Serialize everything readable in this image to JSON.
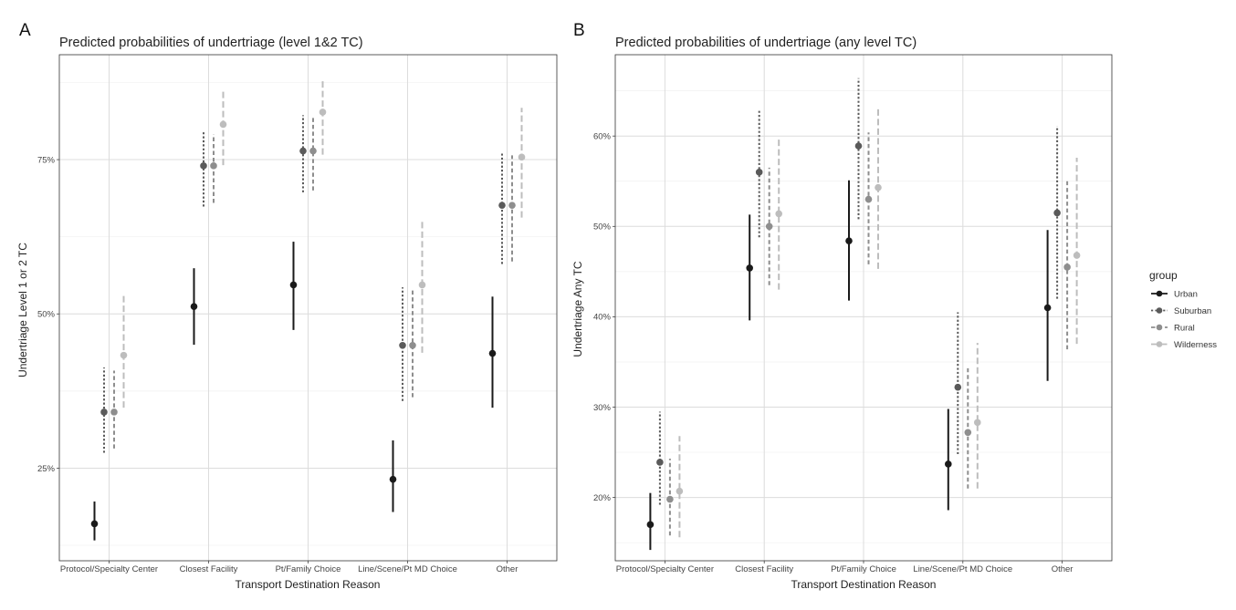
{
  "legend": {
    "title": "group",
    "placement": "right",
    "items": [
      "Urban",
      "Suburban",
      "Rural",
      "Wilderness"
    ]
  },
  "colors": {
    "Urban": "#1a1a1a",
    "Suburban": "#5a5a5a",
    "Rural": "#8e8e8e",
    "Wilderness": "#bdbdbd"
  },
  "line_styles": {
    "Urban": "solid",
    "Suburban": "dotted",
    "Rural": "dashed",
    "Wilderness": "long-dashed"
  },
  "chart_data": [
    {
      "panel": "A",
      "type": "scatter",
      "title": "Predicted probabilities of undertriage (level 1&2 TC)",
      "xlabel": "Transport Destination Reason",
      "ylabel": "Undertriage Level 1 or 2 TC",
      "categories": [
        "Protocol/Specialty Center",
        "Closest Facility",
        "Pt/Family Choice",
        "Line/Scene/Pt MD Choice",
        "Other"
      ],
      "ylim": [
        0.1,
        0.92
      ],
      "yticks": [
        0.25,
        0.5,
        0.75
      ],
      "ytick_labels": [
        "25%",
        "50%",
        "75%"
      ],
      "grid": true,
      "series": [
        {
          "name": "Urban",
          "values": [
            0.16,
            0.512,
            0.547,
            0.232,
            0.436
          ],
          "lower": [
            0.133,
            0.45,
            0.474,
            0.179,
            0.348
          ],
          "upper": [
            0.196,
            0.574,
            0.617,
            0.295,
            0.528
          ]
        },
        {
          "name": "Suburban",
          "values": [
            0.341,
            0.74,
            0.764,
            0.449,
            0.676
          ],
          "lower": [
            0.275,
            0.674,
            0.697,
            0.359,
            0.581
          ],
          "upper": [
            0.413,
            0.796,
            0.822,
            0.543,
            0.76
          ]
        },
        {
          "name": "Rural",
          "values": [
            0.341,
            0.74,
            0.764,
            0.449,
            0.676
          ],
          "lower": [
            0.282,
            0.68,
            0.7,
            0.365,
            0.585
          ],
          "upper": [
            0.408,
            0.791,
            0.82,
            0.54,
            0.757
          ]
        },
        {
          "name": "Wilderness",
          "values": [
            0.433,
            0.807,
            0.827,
            0.547,
            0.754
          ],
          "lower": [
            0.348,
            0.741,
            0.758,
            0.437,
            0.656
          ],
          "upper": [
            0.529,
            0.862,
            0.878,
            0.654,
            0.834
          ]
        }
      ]
    },
    {
      "panel": "B",
      "type": "scatter",
      "title": "Predicted probabilities of undertriage (any level TC)",
      "xlabel": "Transport Destination Reason",
      "ylabel": "Undertriage Any TC",
      "categories": [
        "Protocol/Specialty Center",
        "Closest Facility",
        "Pt/Family Choice",
        "Line/Scene/Pt MD Choice",
        "Other"
      ],
      "ylim": [
        0.13,
        0.69
      ],
      "yticks": [
        0.2,
        0.3,
        0.4,
        0.5,
        0.6
      ],
      "ytick_labels": [
        "20%",
        "30%",
        "40%",
        "50%",
        "60%"
      ],
      "grid": true,
      "series": [
        {
          "name": "Urban",
          "values": [
            0.17,
            0.454,
            0.484,
            0.237,
            0.41
          ],
          "lower": [
            0.142,
            0.396,
            0.418,
            0.186,
            0.329
          ],
          "upper": [
            0.205,
            0.513,
            0.551,
            0.298,
            0.496
          ]
        },
        {
          "name": "Suburban",
          "values": [
            0.239,
            0.56,
            0.589,
            0.322,
            0.515
          ],
          "lower": [
            0.192,
            0.488,
            0.508,
            0.248,
            0.42
          ],
          "upper": [
            0.295,
            0.628,
            0.664,
            0.405,
            0.611
          ]
        },
        {
          "name": "Rural",
          "values": [
            0.198,
            0.5,
            0.53,
            0.272,
            0.455
          ],
          "lower": [
            0.158,
            0.435,
            0.458,
            0.21,
            0.364
          ],
          "upper": [
            0.243,
            0.565,
            0.604,
            0.343,
            0.55
          ]
        },
        {
          "name": "Wilderness",
          "values": [
            0.207,
            0.514,
            0.543,
            0.283,
            0.468
          ],
          "lower": [
            0.156,
            0.43,
            0.453,
            0.21,
            0.37
          ],
          "upper": [
            0.268,
            0.596,
            0.632,
            0.371,
            0.576
          ]
        }
      ]
    }
  ]
}
